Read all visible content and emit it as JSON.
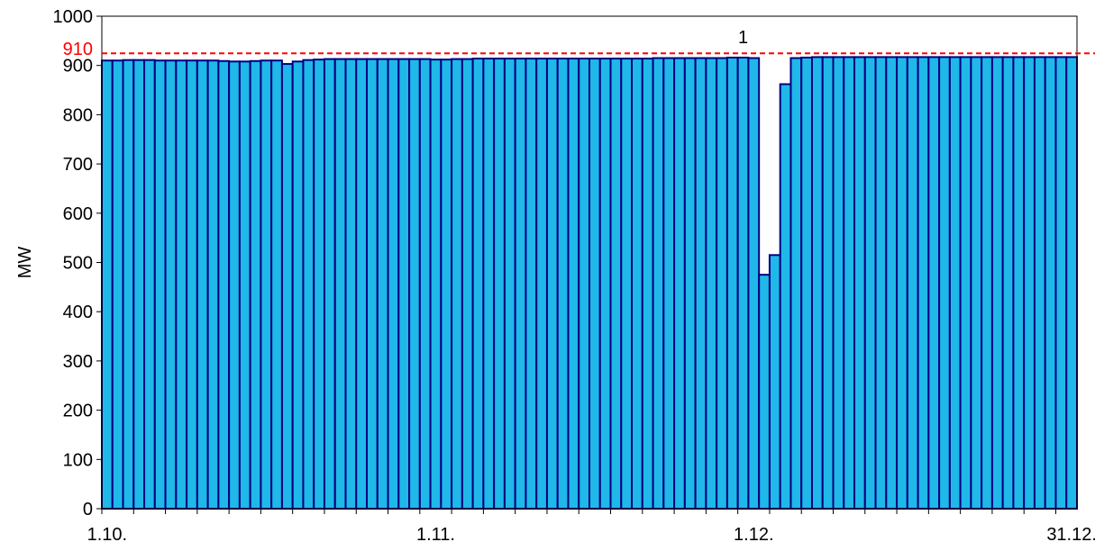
{
  "chart_data": {
    "type": "bar",
    "ylabel": "MW",
    "ylim": [
      0,
      1000
    ],
    "yticks": [
      0,
      100,
      200,
      300,
      400,
      500,
      600,
      700,
      800,
      900,
      1000
    ],
    "x_tick_labels": [
      {
        "label": "1.10.",
        "index": 0
      },
      {
        "label": "1.11.",
        "index": 31
      },
      {
        "label": "1.12.",
        "index": 61
      },
      {
        "label": "31.12.",
        "index": 91
      }
    ],
    "reference_line": {
      "value": 910,
      "label": "910",
      "color": "#ff0000",
      "style": "dashed"
    },
    "annotation": {
      "text": "1",
      "index": 60
    },
    "values": [
      910,
      910,
      911,
      911,
      911,
      910,
      910,
      910,
      910,
      910,
      910,
      909,
      908,
      908,
      909,
      910,
      910,
      903,
      908,
      911,
      912,
      913,
      913,
      913,
      913,
      913,
      913,
      913,
      913,
      913,
      913,
      912,
      912,
      913,
      913,
      914,
      914,
      914,
      914,
      914,
      914,
      914,
      914,
      914,
      914,
      914,
      914,
      914,
      914,
      914,
      914,
      914,
      915,
      915,
      915,
      915,
      915,
      915,
      915,
      916,
      916,
      915,
      475,
      515,
      862,
      915,
      916,
      917,
      917,
      917,
      917,
      917,
      917,
      917,
      917,
      917,
      917,
      917,
      917,
      917,
      917,
      917,
      917,
      917,
      917,
      917,
      917,
      917,
      917,
      917,
      917,
      917
    ],
    "bar_color": "#1fb8e8",
    "bar_edge_color": "#000080",
    "grid": false
  }
}
